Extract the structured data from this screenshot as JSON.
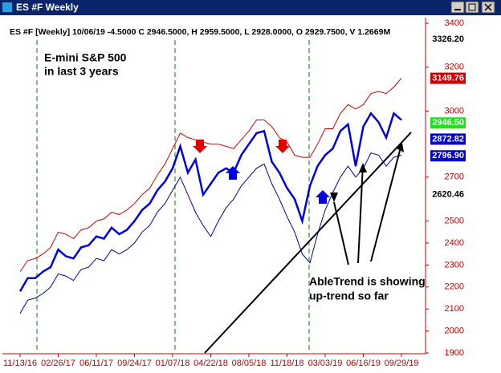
{
  "window": {
    "title": "ES #F Weekly"
  },
  "chart_data": {
    "type": "line",
    "title": "ES #F [Weekly] 10/06/19  -4.5000 C 2946.5000, H 2959.5000, L 2928.0000, O 2929.7500, V 1.2669M",
    "annotations": [
      "E-mini S&P 500",
      "in last 3 years",
      "AbleTrend is showing",
      "up-trend so far"
    ],
    "categories": [
      "11/13/16",
      null,
      null,
      null,
      null,
      "02/26/17",
      null,
      null,
      null,
      null,
      "06/11/17",
      null,
      null,
      null,
      null,
      "09/24/17",
      null,
      null,
      null,
      null,
      "01/07/18",
      null,
      null,
      null,
      null,
      "04/22/18",
      null,
      null,
      null,
      null,
      "08/05/18",
      null,
      null,
      null,
      null,
      "11/18/18",
      null,
      null,
      null,
      null,
      "03/03/19",
      null,
      null,
      null,
      null,
      "06/16/19",
      null,
      null,
      null,
      null,
      "09/29/19"
    ],
    "series": [
      {
        "name": "Close",
        "color": "#0000e0",
        "width": 2.5,
        "values": [
          2180,
          2240,
          2240,
          2270,
          2290,
          2370,
          2340,
          2330,
          2380,
          2390,
          2430,
          2420,
          2470,
          2440,
          2460,
          2500,
          2550,
          2580,
          2640,
          2680,
          2740,
          2840,
          2720,
          2780,
          2620,
          2670,
          2720,
          2740,
          2720,
          2800,
          2850,
          2900,
          2910,
          2770,
          2720,
          2650,
          2600,
          2500,
          2660,
          2750,
          2800,
          2830,
          2910,
          2940,
          2750,
          2930,
          2990,
          2950,
          2880,
          2990,
          2960
        ]
      },
      {
        "name": "Upper band",
        "color": "#d00000",
        "width": 1,
        "values": [
          2270,
          2320,
          2330,
          2350,
          2380,
          2450,
          2440,
          2420,
          2460,
          2470,
          2500,
          2510,
          2540,
          2530,
          2550,
          2580,
          2620,
          2650,
          2710,
          2760,
          2830,
          2900,
          2880,
          2870,
          2860,
          2850,
          2850,
          2840,
          2830,
          2870,
          2910,
          2960,
          2960,
          2930,
          2880,
          2860,
          2800,
          2790,
          2790,
          2850,
          2920,
          2920,
          2990,
          3030,
          3010,
          3030,
          3080,
          3090,
          3080,
          3110,
          3150
        ]
      },
      {
        "name": "Lower band",
        "color": "#0000a0",
        "width": 1,
        "values": [
          2080,
          2140,
          2150,
          2170,
          2200,
          2260,
          2250,
          2230,
          2280,
          2290,
          2330,
          2320,
          2370,
          2350,
          2370,
          2400,
          2450,
          2480,
          2540,
          2580,
          2640,
          2700,
          2620,
          2540,
          2480,
          2430,
          2500,
          2560,
          2600,
          2660,
          2700,
          2740,
          2760,
          2670,
          2600,
          2520,
          2450,
          2350,
          2310,
          2440,
          2550,
          2630,
          2700,
          2750,
          2700,
          2740,
          2810,
          2800,
          2750,
          2790,
          2800
        ]
      }
    ],
    "ylim": [
      1900,
      3400
    ],
    "yticks": [
      1900,
      2000,
      2100,
      2200,
      2300,
      2400,
      2500,
      2700,
      3000,
      3200,
      3400
    ],
    "price_markers": [
      {
        "value": 3326.2,
        "label": "3326.20",
        "color": "#ffffff"
      },
      {
        "value": 3149.76,
        "label": "3149.76",
        "color": "#d00000"
      },
      {
        "value": 2946.5,
        "label": "2946.50",
        "color": "#20e020"
      },
      {
        "value": 2872.82,
        "label": "2872.82",
        "color": "#0000d0"
      },
      {
        "value": 2796.9,
        "label": "2796.90",
        "color": "#0000d0"
      },
      {
        "value": 2620.46,
        "label": "2620.46",
        "color": "#ffffff"
      }
    ]
  }
}
